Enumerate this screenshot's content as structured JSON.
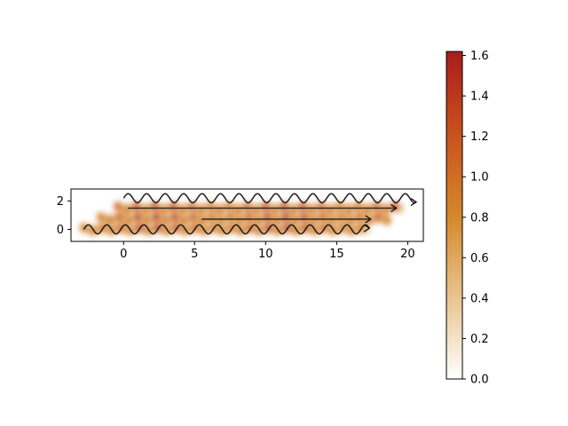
{
  "chart_data": [
    {
      "type": "heatmap",
      "title": "",
      "xlabel": "",
      "ylabel": "",
      "xlim": [
        -3.7,
        21.1
      ],
      "ylim": [
        -0.85,
        2.85
      ],
      "xticks": [
        0,
        5,
        10,
        15,
        20
      ],
      "yticks": [
        0,
        2
      ],
      "description_rows": [
        {
          "name": "row-y0",
          "y": 0.0,
          "x_start": -2.8,
          "x_end": 17.3
        },
        {
          "name": "row-y0.75",
          "y": 0.75,
          "x_start": -1.6,
          "x_end": 18.6
        },
        {
          "name": "row-y1.5",
          "y": 1.5,
          "x_start": -0.4,
          "x_end": 19.7
        }
      ],
      "wave": {
        "period": 1.3,
        "amplitude": 0.32,
        "peak_value": 1.6
      },
      "streamlines": [
        {
          "name": "streamline-bottom",
          "y": 0.0,
          "x_start": -2.8,
          "x_end": 17.3,
          "wavy": true
        },
        {
          "name": "streamline-mid",
          "y": 0.72,
          "x_start": 5.5,
          "x_end": 17.4,
          "wavy": false
        },
        {
          "name": "streamline-upper",
          "y": 1.5,
          "x_start": 0.3,
          "x_end": 19.2,
          "wavy": false
        },
        {
          "name": "streamline-top",
          "y": 2.2,
          "x_start": 0.0,
          "x_end": 20.6,
          "wavy": true
        }
      ]
    },
    {
      "type": "colorbar",
      "vmin": 0.0,
      "vmax": 1.62,
      "ticks": [
        "0.0",
        "0.2",
        "0.4",
        "0.6",
        "0.8",
        "1.0",
        "1.2",
        "1.4",
        "1.6"
      ],
      "colors": [
        "#ffffff",
        "#e9c48e",
        "#d5872a",
        "#c8521d",
        "#a81c1c"
      ]
    }
  ]
}
